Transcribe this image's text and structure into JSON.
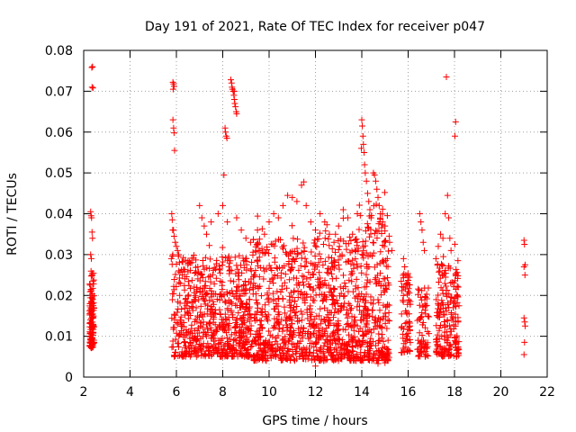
{
  "chart_data": {
    "type": "scatter",
    "title": "Day 191 of 2021, Rate Of TEC Index for receiver p047",
    "xlabel": "GPS time / hours",
    "ylabel": "ROTI / TECUs",
    "xlim": [
      2,
      22
    ],
    "ylim": [
      0,
      0.08
    ],
    "x_ticks": [
      2,
      4,
      6,
      8,
      10,
      12,
      14,
      16,
      18,
      20,
      22
    ],
    "y_ticks": [
      "0",
      "0.01",
      "0.02",
      "0.03",
      "0.04",
      "0.05",
      "0.06",
      "0.07",
      "0.08"
    ],
    "grid": true,
    "marker": "+",
    "color": "#ff0000",
    "series": [
      {
        "name": "ROTI",
        "points": [
          [
            2.35,
            0.0758
          ],
          [
            2.38,
            0.076
          ],
          [
            2.4,
            0.0708
          ],
          [
            2.36,
            0.071
          ],
          [
            2.3,
            0.0405
          ],
          [
            2.32,
            0.0395
          ],
          [
            2.34,
            0.039
          ],
          [
            2.36,
            0.0355
          ],
          [
            2.38,
            0.034
          ],
          [
            2.3,
            0.03
          ],
          [
            2.33,
            0.029
          ],
          [
            2.36,
            0.025
          ],
          [
            2.4,
            0.0235
          ],
          [
            2.28,
            0.0225
          ],
          [
            2.31,
            0.0215
          ],
          [
            2.35,
            0.02
          ],
          [
            2.39,
            0.019
          ],
          [
            2.27,
            0.018
          ],
          [
            2.3,
            0.017
          ],
          [
            2.34,
            0.016
          ],
          [
            2.38,
            0.015
          ],
          [
            2.29,
            0.014
          ],
          [
            2.32,
            0.013
          ],
          [
            2.36,
            0.012
          ],
          [
            2.4,
            0.011
          ],
          [
            2.28,
            0.01
          ],
          [
            2.31,
            0.009
          ],
          [
            2.35,
            0.0085
          ],
          [
            2.39,
            0.008
          ],
          [
            2.33,
            0.0075
          ],
          [
            2.37,
            0.0095
          ],
          [
            2.42,
            0.0125
          ],
          [
            2.26,
            0.0155
          ],
          [
            2.41,
            0.0175
          ],
          [
            5.85,
            0.0722
          ],
          [
            5.88,
            0.0718
          ],
          [
            5.9,
            0.0712
          ],
          [
            5.86,
            0.0705
          ],
          [
            5.85,
            0.063
          ],
          [
            5.88,
            0.061
          ],
          [
            5.9,
            0.0598
          ],
          [
            5.92,
            0.0555
          ],
          [
            5.8,
            0.04
          ],
          [
            5.82,
            0.0385
          ],
          [
            5.84,
            0.036
          ],
          [
            5.9,
            0.0345
          ],
          [
            5.95,
            0.033
          ],
          [
            6.0,
            0.032
          ],
          [
            6.05,
            0.031
          ],
          [
            6.1,
            0.03
          ],
          [
            5.78,
            0.029
          ],
          [
            8.1,
            0.061
          ],
          [
            8.12,
            0.06
          ],
          [
            8.15,
            0.059
          ],
          [
            8.18,
            0.0585
          ],
          [
            8.05,
            0.0495
          ],
          [
            8.35,
            0.0728
          ],
          [
            8.38,
            0.072
          ],
          [
            8.4,
            0.071
          ],
          [
            8.42,
            0.0705
          ],
          [
            8.45,
            0.07
          ],
          [
            8.48,
            0.069
          ],
          [
            8.5,
            0.068
          ],
          [
            8.52,
            0.067
          ],
          [
            8.55,
            0.0662
          ],
          [
            8.58,
            0.065
          ],
          [
            8.6,
            0.0645
          ],
          [
            8.5,
            0.07
          ],
          [
            7.0,
            0.042
          ],
          [
            7.1,
            0.039
          ],
          [
            7.2,
            0.037
          ],
          [
            7.3,
            0.035
          ],
          [
            7.5,
            0.038
          ],
          [
            7.8,
            0.04
          ],
          [
            8.0,
            0.042
          ],
          [
            8.2,
            0.038
          ],
          [
            8.6,
            0.039
          ],
          [
            8.8,
            0.036
          ],
          [
            9.0,
            0.034
          ],
          [
            9.2,
            0.033
          ],
          [
            9.5,
            0.036
          ],
          [
            9.8,
            0.035
          ],
          [
            10.0,
            0.038
          ],
          [
            10.2,
            0.04
          ],
          [
            10.4,
            0.039
          ],
          [
            10.6,
            0.042
          ],
          [
            10.8,
            0.0445
          ],
          [
            11.0,
            0.044
          ],
          [
            11.2,
            0.043
          ],
          [
            11.4,
            0.047
          ],
          [
            11.5,
            0.0478
          ],
          [
            11.6,
            0.042
          ],
          [
            11.8,
            0.038
          ],
          [
            12.0,
            0.036
          ],
          [
            12.2,
            0.04
          ],
          [
            12.4,
            0.038
          ],
          [
            12.6,
            0.035
          ],
          [
            12.8,
            0.033
          ],
          [
            13.0,
            0.037
          ],
          [
            13.2,
            0.041
          ],
          [
            13.4,
            0.039
          ],
          [
            13.6,
            0.035
          ],
          [
            13.8,
            0.033
          ],
          [
            14.0,
            0.063
          ],
          [
            14.02,
            0.0615
          ],
          [
            14.05,
            0.059
          ],
          [
            14.07,
            0.057
          ],
          [
            13.98,
            0.056
          ],
          [
            14.1,
            0.055
          ],
          [
            14.12,
            0.052
          ],
          [
            14.15,
            0.05
          ],
          [
            14.2,
            0.048
          ],
          [
            14.25,
            0.045
          ],
          [
            14.3,
            0.043
          ],
          [
            14.35,
            0.041
          ],
          [
            14.4,
            0.039
          ],
          [
            14.5,
            0.05
          ],
          [
            14.55,
            0.0495
          ],
          [
            14.6,
            0.048
          ],
          [
            14.65,
            0.046
          ],
          [
            14.7,
            0.044
          ],
          [
            14.75,
            0.042
          ],
          [
            14.8,
            0.04
          ],
          [
            14.9,
            0.038
          ],
          [
            15.0,
            0.037
          ],
          [
            15.2,
            0.033
          ],
          [
            15.3,
            0.031
          ],
          [
            15.8,
            0.029
          ],
          [
            15.85,
            0.027
          ],
          [
            15.9,
            0.025
          ],
          [
            15.95,
            0.023
          ],
          [
            16.0,
            0.021
          ],
          [
            16.5,
            0.04
          ],
          [
            16.55,
            0.038
          ],
          [
            16.6,
            0.036
          ],
          [
            16.65,
            0.033
          ],
          [
            16.7,
            0.031
          ],
          [
            17.2,
            0.029
          ],
          [
            17.3,
            0.032
          ],
          [
            17.4,
            0.035
          ],
          [
            17.5,
            0.034
          ],
          [
            17.6,
            0.04
          ],
          [
            17.65,
            0.0735
          ],
          [
            17.7,
            0.0445
          ],
          [
            17.75,
            0.039
          ],
          [
            17.8,
            0.034
          ],
          [
            17.85,
            0.031
          ],
          [
            18.05,
            0.0625
          ],
          [
            18.02,
            0.059
          ],
          [
            21.0,
            0.0335
          ],
          [
            21.02,
            0.0325
          ],
          [
            21.05,
            0.0275
          ],
          [
            21.0,
            0.027
          ],
          [
            21.04,
            0.025
          ],
          [
            21.0,
            0.0145
          ],
          [
            21.03,
            0.0135
          ],
          [
            21.05,
            0.0125
          ],
          [
            21.02,
            0.0085
          ],
          [
            21.0,
            0.0055
          ],
          [
            12.0,
            0.0027
          ],
          [
            14.7,
            0.0033
          ],
          [
            15.0,
            0.0035
          ]
        ]
      }
    ]
  }
}
